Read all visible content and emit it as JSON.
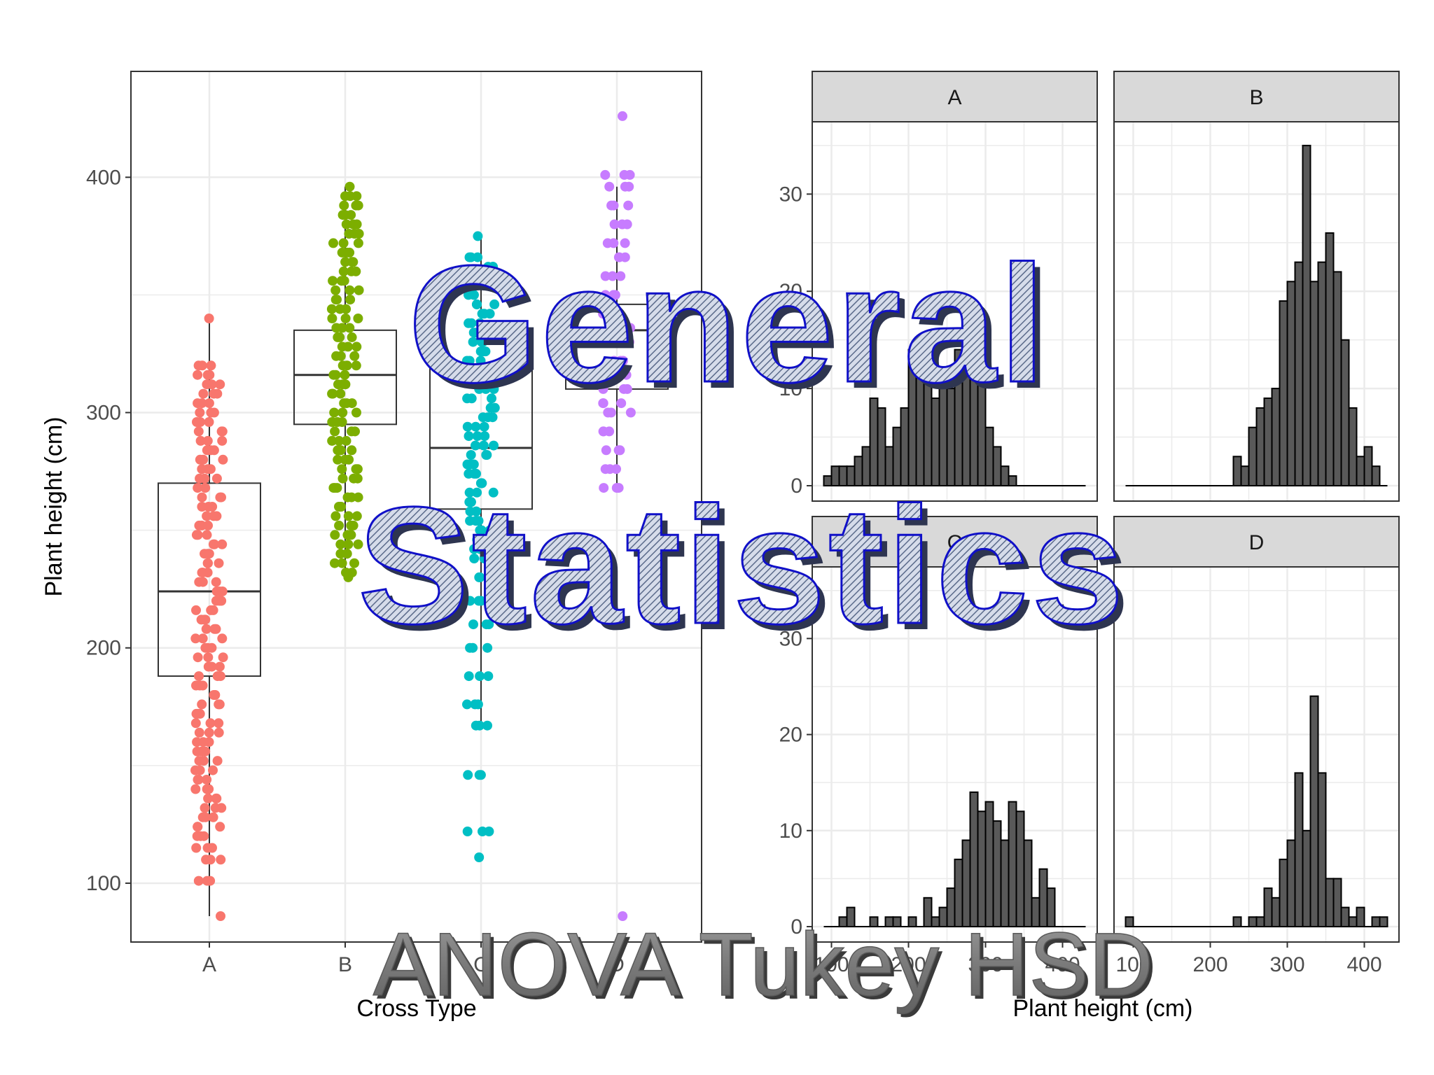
{
  "overlay": {
    "title_line1": "General",
    "title_line2": "Statistics",
    "subtitle": "ANOVA Tukey HSD"
  },
  "colors": {
    "A": "#F8766D",
    "B": "#7CAE00",
    "C": "#00BFC4",
    "D": "#C77CFF",
    "bar_fill": "#595959",
    "strip_fill": "#D9D9D9",
    "grid": "#EBEBEB",
    "title_stroke": "#1010C8"
  },
  "chart_data": [
    {
      "type": "box",
      "xlabel": "Cross Type",
      "ylabel": "Plant height (cm)",
      "categories": [
        "A",
        "B",
        "C",
        "D"
      ],
      "ylim": [
        75,
        445
      ],
      "yticks": [
        100,
        200,
        300,
        400
      ],
      "grid": true,
      "boxes": [
        {
          "name": "A",
          "min": 86,
          "q1": 188,
          "median": 224,
          "q3": 270,
          "max": 340
        },
        {
          "name": "B",
          "min": 230,
          "q1": 295,
          "median": 316,
          "q3": 335,
          "max": 396
        },
        {
          "name": "C",
          "min": 168,
          "q1": 259,
          "median": 285,
          "q3": 320,
          "max": 375
        },
        {
          "name": "D",
          "min": 266,
          "q1": 310,
          "median": 335,
          "q3": 346,
          "max": 396
        }
      ],
      "points": {
        "A": [
          340,
          320,
          316,
          312,
          308,
          304,
          300,
          296,
          292,
          288,
          284,
          280,
          276,
          272,
          268,
          264,
          260,
          256,
          252,
          248,
          244,
          240,
          236,
          232,
          228,
          224,
          220,
          216,
          212,
          208,
          204,
          200,
          196,
          192,
          188,
          184,
          180,
          176,
          172,
          168,
          164,
          160,
          156,
          152,
          148,
          144,
          140,
          136,
          132,
          128,
          124,
          120,
          115,
          110,
          101,
          86
        ],
        "B": [
          396,
          392,
          388,
          384,
          380,
          376,
          372,
          368,
          364,
          360,
          356,
          352,
          348,
          344,
          340,
          336,
          332,
          328,
          324,
          320,
          316,
          312,
          308,
          304,
          300,
          296,
          292,
          288,
          284,
          280,
          276,
          272,
          268,
          264,
          260,
          256,
          252,
          248,
          244,
          240,
          236,
          232,
          230
        ],
        "C": [
          375,
          366,
          362,
          358,
          354,
          350,
          346,
          342,
          338,
          334,
          330,
          326,
          322,
          318,
          314,
          310,
          306,
          302,
          298,
          294,
          290,
          286,
          282,
          278,
          274,
          270,
          266,
          262,
          258,
          254,
          250,
          246,
          242,
          238,
          230,
          220,
          210,
          200,
          188,
          176,
          167,
          146,
          122,
          111
        ],
        "D": [
          426,
          401,
          396,
          388,
          380,
          372,
          366,
          358,
          350,
          342,
          336,
          330,
          322,
          316,
          310,
          304,
          300,
          292,
          284,
          276,
          268,
          86
        ]
      }
    },
    {
      "type": "bar",
      "facet": "A",
      "xlabel": "Plant height (cm)",
      "xticks": [
        100,
        200,
        300,
        400
      ],
      "ylim": [
        0,
        36
      ],
      "yticks": [
        0,
        10,
        20,
        30
      ],
      "grid": true,
      "bins": [
        [
          90,
          1
        ],
        [
          100,
          2
        ],
        [
          110,
          2
        ],
        [
          120,
          2
        ],
        [
          130,
          3
        ],
        [
          140,
          4
        ],
        [
          150,
          9
        ],
        [
          160,
          8
        ],
        [
          170,
          4
        ],
        [
          180,
          6
        ],
        [
          190,
          8
        ],
        [
          200,
          14
        ],
        [
          210,
          13
        ],
        [
          220,
          12
        ],
        [
          230,
          9
        ],
        [
          240,
          11
        ],
        [
          250,
          10
        ],
        [
          260,
          14
        ],
        [
          270,
          15
        ],
        [
          280,
          13
        ],
        [
          290,
          11
        ],
        [
          300,
          6
        ],
        [
          310,
          4
        ],
        [
          320,
          2
        ],
        [
          330,
          1
        ]
      ]
    },
    {
      "type": "bar",
      "facet": "B",
      "xlabel": "Plant height (cm)",
      "xticks": [
        100,
        200,
        300,
        400
      ],
      "ylim": [
        0,
        36
      ],
      "yticks": [
        0,
        10,
        20,
        30
      ],
      "grid": true,
      "bins": [
        [
          230,
          3
        ],
        [
          240,
          2
        ],
        [
          250,
          6
        ],
        [
          260,
          8
        ],
        [
          270,
          9
        ],
        [
          280,
          10
        ],
        [
          290,
          19
        ],
        [
          300,
          21
        ],
        [
          310,
          23
        ],
        [
          320,
          35
        ],
        [
          330,
          21
        ],
        [
          340,
          23
        ],
        [
          350,
          26
        ],
        [
          360,
          22
        ],
        [
          370,
          15
        ],
        [
          380,
          8
        ],
        [
          390,
          3
        ],
        [
          400,
          4
        ],
        [
          410,
          2
        ]
      ]
    },
    {
      "type": "bar",
      "facet": "C",
      "xlabel": "Plant height (cm)",
      "xticks": [
        100,
        200,
        300,
        400
      ],
      "ylim": [
        0,
        36
      ],
      "yticks": [
        0,
        10,
        20,
        30
      ],
      "grid": true,
      "bins": [
        [
          110,
          1
        ],
        [
          120,
          2
        ],
        [
          150,
          1
        ],
        [
          170,
          1
        ],
        [
          180,
          1
        ],
        [
          200,
          1
        ],
        [
          220,
          3
        ],
        [
          230,
          1
        ],
        [
          240,
          2
        ],
        [
          250,
          4
        ],
        [
          260,
          7
        ],
        [
          270,
          9
        ],
        [
          280,
          14
        ],
        [
          290,
          12
        ],
        [
          300,
          13
        ],
        [
          310,
          11
        ],
        [
          320,
          9
        ],
        [
          330,
          13
        ],
        [
          340,
          12
        ],
        [
          350,
          9
        ],
        [
          360,
          3
        ],
        [
          370,
          6
        ],
        [
          380,
          4
        ]
      ]
    },
    {
      "type": "bar",
      "facet": "D",
      "xlabel": "Plant height (cm)",
      "xticks": [
        100,
        200,
        300,
        400
      ],
      "ylim": [
        0,
        36
      ],
      "yticks": [
        0,
        10,
        20,
        30
      ],
      "grid": true,
      "bins": [
        [
          90,
          1
        ],
        [
          230,
          1
        ],
        [
          250,
          1
        ],
        [
          260,
          1
        ],
        [
          270,
          4
        ],
        [
          280,
          3
        ],
        [
          290,
          7
        ],
        [
          300,
          9
        ],
        [
          310,
          16
        ],
        [
          320,
          10
        ],
        [
          330,
          24
        ],
        [
          340,
          16
        ],
        [
          350,
          5
        ],
        [
          360,
          5
        ],
        [
          370,
          2
        ],
        [
          380,
          1
        ],
        [
          390,
          2
        ],
        [
          410,
          1
        ],
        [
          420,
          1
        ]
      ]
    }
  ]
}
